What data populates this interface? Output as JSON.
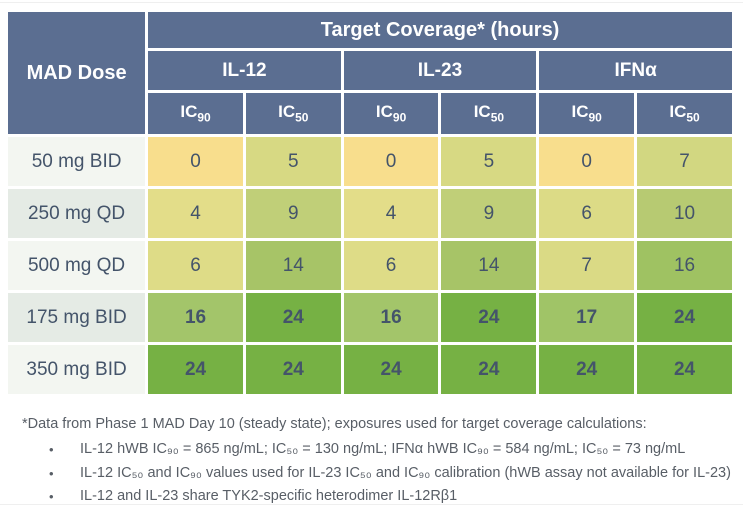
{
  "table": {
    "corner_header": "MAD Dose",
    "top_header": "Target Coverage* (hours)",
    "group_headers": [
      "IL-12",
      "IL-23",
      "IFNα"
    ],
    "sub_headers": [
      {
        "base": "IC",
        "sub": "90"
      },
      {
        "base": "IC",
        "sub": "50"
      },
      {
        "base": "IC",
        "sub": "90"
      },
      {
        "base": "IC",
        "sub": "50"
      },
      {
        "base": "IC",
        "sub": "90"
      },
      {
        "base": "IC",
        "sub": "50"
      }
    ],
    "rows": [
      {
        "label": "50 mg BID",
        "label_bg": "#F3F6F1",
        "values": [
          "0",
          "5",
          "0",
          "5",
          "0",
          "7"
        ],
        "colors": [
          "#F8DE8D",
          "#D7D983",
          "#F8DE8D",
          "#D7D983",
          "#F8DE8D",
          "#D2D781"
        ]
      },
      {
        "label": "250 mg QD",
        "label_bg": "#E5EBE5",
        "values": [
          "4",
          "9",
          "4",
          "9",
          "6",
          "10"
        ],
        "colors": [
          "#E3DD89",
          "#C0CF78",
          "#E3DD89",
          "#C0CF78",
          "#DCDB86",
          "#B7CA72"
        ]
      },
      {
        "label": "500 mg QD",
        "label_bg": "#F3F6F1",
        "values": [
          "6",
          "14",
          "6",
          "14",
          "7",
          "16"
        ],
        "colors": [
          "#DEDC87",
          "#A7C467",
          "#DEDC87",
          "#A7C467",
          "#DADA85",
          "#9FC262"
        ]
      },
      {
        "label": "175 mg BID",
        "label_bg": "#E5EBE5",
        "values": [
          "16",
          "24",
          "16",
          "24",
          "17",
          "24"
        ],
        "colors": [
          "#A3C56A",
          "#76B144",
          "#A3C56A",
          "#76B144",
          "#A0C467",
          "#76B144"
        ]
      },
      {
        "label": "350 mg BID",
        "label_bg": "#F3F6F1",
        "values": [
          "24",
          "24",
          "24",
          "24",
          "24",
          "24"
        ],
        "colors": [
          "#76B144",
          "#76B144",
          "#76B144",
          "#76B144",
          "#76B144",
          "#76B144"
        ]
      }
    ]
  },
  "footnotes": {
    "intro": "*Data from Phase 1 MAD Day 10 (steady state); exposures used for target coverage calculations:",
    "bullets": [
      "IL-12 hWB IC₉₀ = 865 ng/mL; IC₅₀ = 130 ng/mL; IFNα hWB IC₉₀ = 584 ng/mL; IC₅₀ = 73 ng/mL",
      "IL-12 IC₅₀ and IC₉₀ values used for IL-23 IC₅₀ and IC₉₀ calibration (hWB assay not available for IL-23)",
      "IL-12 and IL-23 share TYK2-specific heterodimer IL-12Rβ1"
    ]
  },
  "colors": {
    "header_bg": "#5B6E91",
    "header_text": "#FFFFFF",
    "cell_text": "#44546A",
    "footnote_text": "#585E66",
    "scale_low": "#F8DE8D",
    "scale_high": "#76B144"
  }
}
